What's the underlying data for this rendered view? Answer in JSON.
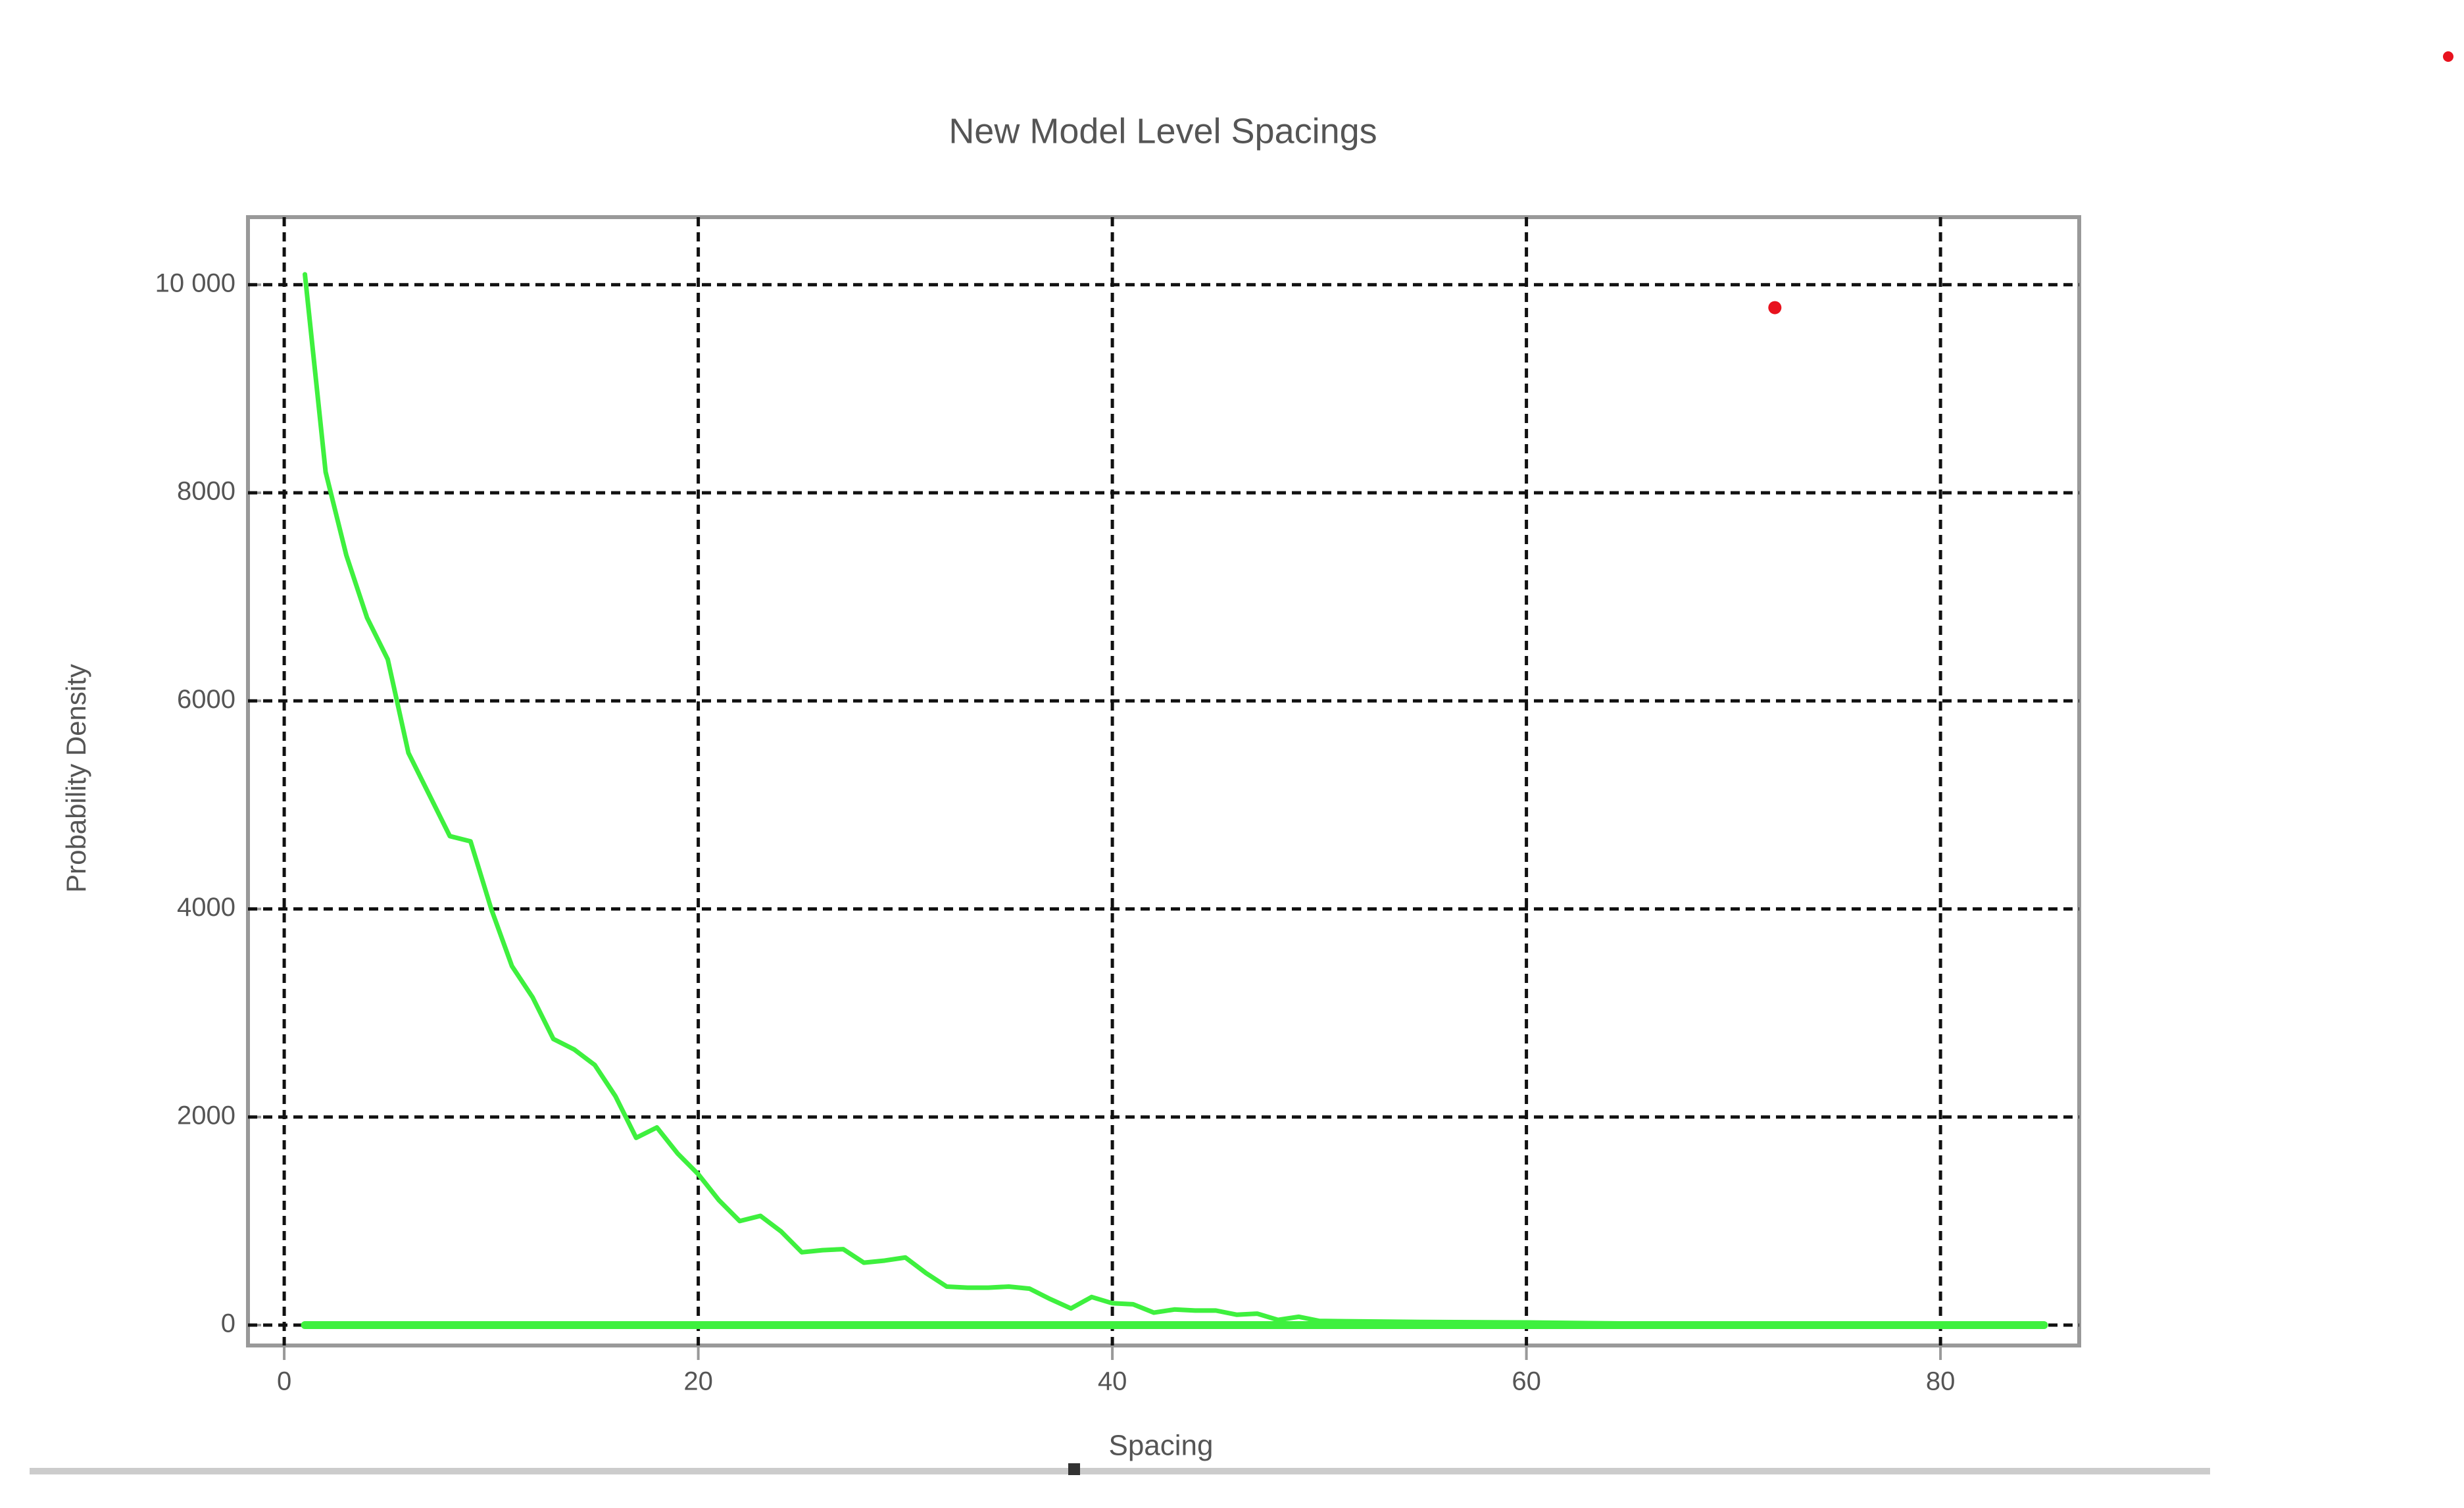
{
  "chart_data": {
    "type": "line",
    "title": "New Model Level Spacings",
    "x_label": "Spacing",
    "y_label": "Probability Density",
    "xlim": [
      -1.75,
      86.7
    ],
    "ylim": [
      -196,
      10650
    ],
    "xticks": [
      0,
      20,
      40,
      60,
      80
    ],
    "yticks": [
      0,
      2000,
      4000,
      6000,
      8000,
      {
        "value": 10000,
        "label": "10 000"
      }
    ],
    "grid": true,
    "series": [
      {
        "color": "#3ef03e",
        "mode": "lines",
        "width": "thin",
        "x": [
          1,
          2,
          3,
          4,
          5,
          6,
          7,
          8,
          9,
          10,
          11,
          12,
          13,
          14,
          15,
          16,
          17,
          18,
          19,
          20,
          21,
          22,
          23,
          24,
          25,
          26,
          27,
          28,
          29,
          30,
          31,
          32,
          33,
          34,
          35,
          36,
          37,
          38,
          39,
          40,
          41,
          42,
          43,
          44,
          45,
          46,
          47,
          48,
          49,
          50,
          55,
          60,
          65,
          70,
          75,
          80,
          85
        ],
        "values": [
          10100,
          8200,
          7400,
          6800,
          6400,
          5500,
          5100,
          4700,
          4650,
          4000,
          3450,
          3150,
          2750,
          2650,
          2500,
          2200,
          1800,
          1900,
          1650,
          1450,
          1200,
          1000,
          1050,
          900,
          700,
          720,
          730,
          600,
          620,
          650,
          500,
          370,
          360,
          360,
          370,
          350,
          250,
          160,
          270,
          210,
          200,
          120,
          150,
          140,
          140,
          100,
          110,
          50,
          80,
          40,
          30,
          25,
          15,
          10,
          5,
          10,
          5
        ]
      },
      {
        "color": "#3ef03e",
        "mode": "lines",
        "width": "thick",
        "x": [
          1,
          85
        ],
        "values": [
          0,
          0
        ]
      },
      {
        "color": "#e8121e",
        "mode": "markers",
        "x": [
          72
        ],
        "values": [
          9780
        ]
      }
    ]
  }
}
